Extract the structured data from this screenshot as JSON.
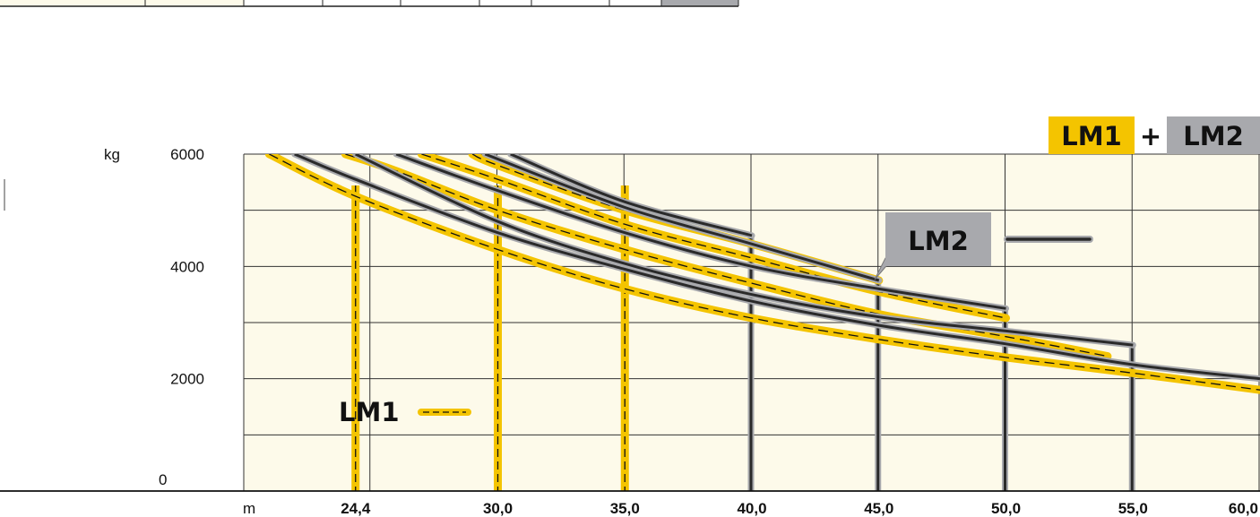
{
  "chart_data": {
    "type": "line",
    "title": "",
    "xlabel": "",
    "x_unit": "m",
    "y_unit": "kg",
    "xlim": [
      20.0,
      60.0
    ],
    "ylim": [
      0,
      6000
    ],
    "x_ticks": [
      "24,4",
      "30,0",
      "35,0",
      "40,0",
      "45,0",
      "50,0",
      "55,0",
      "60,0"
    ],
    "x_tick_values": [
      24.4,
      30.0,
      35.0,
      40.0,
      45.0,
      50.0,
      55.0,
      60.0
    ],
    "y_ticks": [
      0,
      2000,
      4000,
      6000
    ],
    "grid": true,
    "legend_title_parts": [
      "LM1",
      "+",
      "LM2"
    ],
    "legend": [
      {
        "name": "LM1",
        "style": "yellow dashed",
        "color": "#f4c400"
      },
      {
        "name": "LM2",
        "style": "black solid with grey outline",
        "color": "#2a2a2a"
      }
    ],
    "colors": {
      "plot_bg": "#fdfaea",
      "lm1": "#f4c400",
      "lm2": "#2a2a2a",
      "lm2_outline": "#a8a9ad",
      "grid": "#333333"
    },
    "series": [
      {
        "name": "LM1",
        "jib": "24,4",
        "x": [
          21.0,
          24.4,
          30.0,
          35.0,
          40.0,
          45.0,
          50.0,
          55.0,
          60.0
        ],
        "values": [
          6000,
          5250,
          4300,
          3600,
          3080,
          2700,
          2380,
          2100,
          1800
        ]
      },
      {
        "name": "LM1",
        "jib": "30,0",
        "x": [
          24.0,
          26.0,
          30.0,
          35.0,
          40.0,
          45.0,
          50.0,
          54.0
        ],
        "values": [
          6000,
          5700,
          5000,
          4300,
          3700,
          3150,
          2750,
          2400
        ]
      },
      {
        "name": "LM1",
        "jib": "35,0",
        "x": [
          27.0,
          30.0,
          35.0,
          40.0,
          45.0,
          50.0
        ],
        "values": [
          6000,
          5550,
          4750,
          4150,
          3550,
          3080
        ]
      },
      {
        "name": "LM1",
        "jib": "40,0",
        "x": [
          29.0,
          30.0,
          35.0,
          40.0,
          45.0
        ],
        "values": [
          6000,
          5800,
          5000,
          4400,
          3750
        ]
      },
      {
        "name": "LM2",
        "jib": "40,0",
        "x": [
          30.5,
          35.0,
          40.0
        ],
        "values": [
          6000,
          5150,
          4550
        ]
      },
      {
        "name": "LM2",
        "jib": "45,0",
        "x": [
          29.5,
          35.0,
          40.0,
          45.0
        ],
        "values": [
          6000,
          5050,
          4400,
          3750
        ]
      },
      {
        "name": "LM2",
        "jib": "50,0",
        "x": [
          26.0,
          30.0,
          35.0,
          40.0,
          45.0,
          50.0
        ],
        "values": [
          6000,
          5350,
          4600,
          4000,
          3600,
          3250
        ]
      },
      {
        "name": "LM2",
        "jib": "55,0",
        "x": [
          24.4,
          30.0,
          35.0,
          40.0,
          45.0,
          50.0,
          55.0
        ],
        "values": [
          6000,
          4800,
          4050,
          3500,
          3100,
          2850,
          2600
        ]
      },
      {
        "name": "LM2",
        "jib": "60,0",
        "x": [
          22.0,
          24.4,
          30.0,
          35.0,
          40.0,
          45.0,
          50.0,
          55.0,
          60.0
        ],
        "values": [
          6000,
          5550,
          4600,
          3950,
          3380,
          2950,
          2620,
          2250,
          2000
        ]
      }
    ]
  }
}
